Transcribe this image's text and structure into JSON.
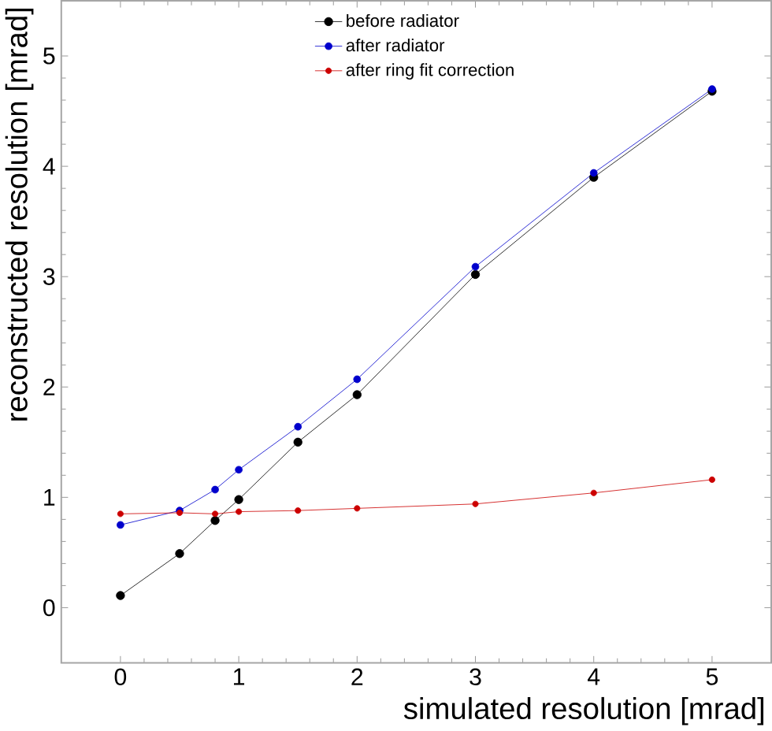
{
  "chart_data": {
    "type": "line",
    "xlabel": "simulated resolution [mrad]",
    "ylabel": "reconstructed resolution [mrad]",
    "x": [
      0,
      0.5,
      0.8,
      1,
      1.5,
      2,
      3,
      4,
      5
    ],
    "series": [
      {
        "name": "before radiator",
        "color": "#000000",
        "values": [
          0.11,
          0.49,
          0.79,
          0.98,
          1.5,
          1.93,
          3.02,
          3.9,
          4.68
        ]
      },
      {
        "name": "after radiator",
        "color": "#0000cc",
        "values": [
          0.75,
          0.88,
          1.07,
          1.25,
          1.64,
          2.07,
          3.09,
          3.94,
          4.7
        ]
      },
      {
        "name": "after ring fit correction",
        "color": "#cc0000",
        "values": [
          0.85,
          0.86,
          0.85,
          0.87,
          0.88,
          0.9,
          0.94,
          1.04,
          1.16
        ]
      }
    ],
    "xlim": [
      -0.5,
      5.5
    ],
    "ylim": [
      -0.5,
      5.5
    ],
    "xticks": [
      0,
      1,
      2,
      3,
      4,
      5
    ],
    "yticks": [
      0,
      1,
      2,
      3,
      4,
      5
    ],
    "grid": false,
    "legend": "top",
    "marker": "circle",
    "line_style": "solid"
  }
}
